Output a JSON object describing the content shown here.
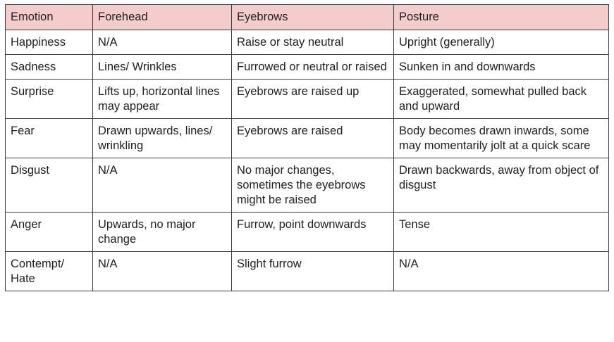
{
  "table": {
    "headers": [
      "Emotion",
      "Forehead",
      "Eyebrows",
      "Posture"
    ],
    "rows": [
      [
        "Happiness",
        "N/A",
        "Raise or stay neutral",
        "Upright (generally)"
      ],
      [
        "Sadness",
        "Lines/ Wrinkles",
        "Furrowed or neutral or raised",
        "Sunken in and downwards"
      ],
      [
        "Surprise",
        "Lifts up, horizontal lines may appear",
        "Eyebrows are raised up",
        "Exaggerated, somewhat pulled back and upward"
      ],
      [
        "Fear",
        "Drawn upwards, lines/ wrinkling",
        "Eyebrows are raised",
        "Body becomes drawn inwards, some may momentarily jolt at a quick scare"
      ],
      [
        "Disgust",
        "N/A",
        "No major changes, sometimes the eyebrows might be raised",
        "Drawn backwards, away from object of disgust"
      ],
      [
        "Anger",
        "Upwards, no major change",
        "Furrow, point downwards",
        "Tense"
      ],
      [
        "Contempt/ Hate",
        "N/A",
        "Slight furrow",
        "N/A"
      ]
    ]
  },
  "colors": {
    "header_background": "#f4cccc",
    "border": "#3c3c3c",
    "text": "#202124"
  }
}
